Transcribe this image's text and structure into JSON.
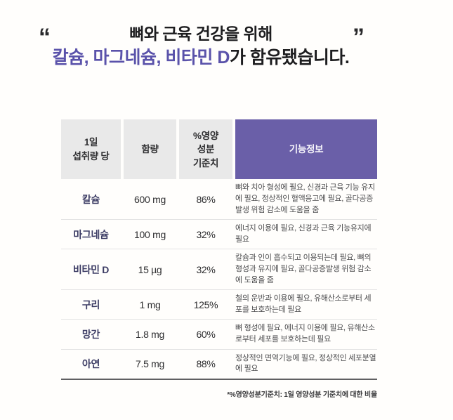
{
  "title": {
    "open_quote": "“",
    "close_quote": "”",
    "line1": "뼈와 근육 건강을 위해",
    "line2_highlight": "칼슘, 마그네슘, 비타민 D",
    "line2_rest": "가 함유됐습니다."
  },
  "colors": {
    "header_purple": "#6a5fa8",
    "title_highlight_purple": "#5a52aa",
    "header_gray": "#e9e9e9",
    "nutrient_name_navy": "#3c3c64",
    "body_text": "#4e4e50"
  },
  "table": {
    "headers": [
      {
        "lines": [
          "1일",
          "섭취량 당"
        ]
      },
      {
        "lines": [
          "함량"
        ]
      },
      {
        "lines": [
          "%영양",
          "성분",
          "기준치"
        ]
      },
      {
        "lines": [
          "기능정보"
        ]
      }
    ],
    "rows": [
      {
        "name": "칼슘",
        "amount": "600 mg",
        "daily_value": "86%",
        "info": "뼈와 치아 형성에 필요, 신경과 근육 기능 유지에 필요, 정상적인 혈액응고에 필요, 골다공증발생 위험 감소에 도움을 줌"
      },
      {
        "name": "마그네슘",
        "amount": "100 mg",
        "daily_value": "32%",
        "info": "에너지 이용에 필요, 신경과 근육 기능유지에 필요"
      },
      {
        "name": "비타민 D",
        "amount": "15 µg",
        "daily_value": "32%",
        "info": "칼슘과 인이 흡수되고 이용되는데 필요, 뼈의 형성과 유지에 필요, 골다공증발생 위험 감소에 도움을 줌"
      },
      {
        "name": "구리",
        "amount": "1 mg",
        "daily_value": "125%",
        "info": "철의 운반과 이용에 필요, 유해산소로부터 세포를 보호하는데 필요"
      },
      {
        "name": "망간",
        "amount": "1.8 mg",
        "daily_value": "60%",
        "info": "뼈 형성에 필요, 에너지 이용에 필요, 유해산소로부터 세포를 보호하는데 필요"
      },
      {
        "name": "아연",
        "amount": "7.5 mg",
        "daily_value": "88%",
        "info": "정상적인 면역기능에 필요, 정상적인 세포분열에 필요"
      }
    ],
    "footnote": "*%영양성분기준치: 1일 영양성분 기준치에 대한 비율"
  }
}
